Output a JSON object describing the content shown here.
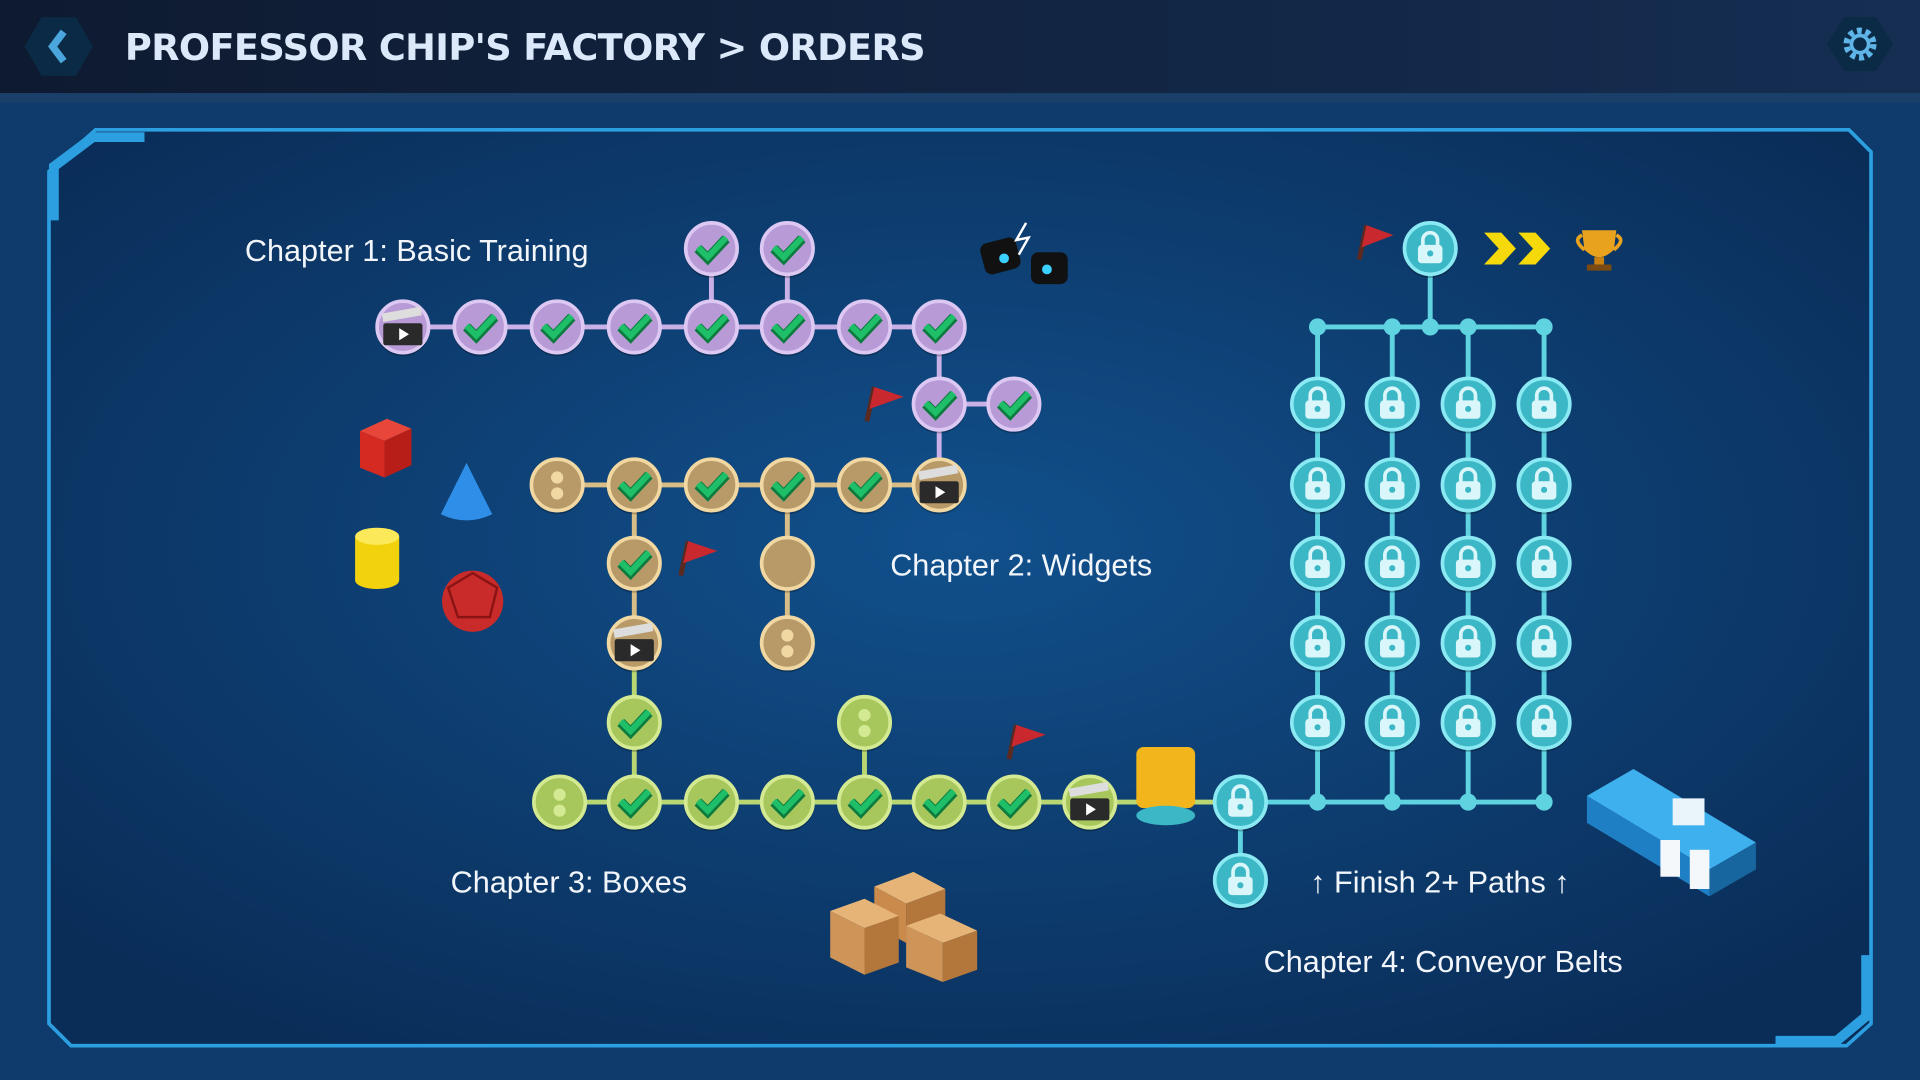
{
  "header": {
    "title": "PROFESSOR CHIP'S FACTORY > ORDERS",
    "back_icon": "chevron-left-icon",
    "settings_icon": "gear-icon"
  },
  "colors": {
    "background": "#0d3a6a",
    "frame": "#2a9fe0",
    "header_bg": "#10213d",
    "check": "#1fbf6a"
  },
  "chapters": [
    {
      "label": "Chapter 1: Basic Training",
      "fill": "#b79ad6",
      "ring": "#dcc8f2",
      "line": "#c9b0e6",
      "nodes": [
        "video",
        "done",
        "done",
        "done",
        "done",
        "done",
        "done",
        "done",
        "done",
        "done",
        "done",
        "done"
      ]
    },
    {
      "label": "Chapter 2: Widgets",
      "fill": "#b89a68",
      "ring": "#f1d8a2",
      "line": "#d9bd86",
      "nodes": [
        "start",
        "done",
        "done",
        "done",
        "done",
        "video",
        "done",
        "empty",
        "start",
        "video"
      ]
    },
    {
      "label": "Chapter 3: Boxes",
      "fill": "#a7c65c",
      "ring": "#d3ea92",
      "line": "#b8d672",
      "nodes": [
        "done",
        "start",
        "done",
        "done",
        "done",
        "done",
        "done",
        "done",
        "start",
        "video",
        "package"
      ]
    },
    {
      "label": "Chapter 4: Conveyor Belts",
      "fill": "#3cb7c6",
      "ring": "#8ae9f2",
      "line": "#5fd3e0",
      "nodes": [
        "locked",
        "locked",
        "locked",
        "locked",
        "locked",
        "locked",
        "locked",
        "locked",
        "locked",
        "locked",
        "locked",
        "locked",
        "locked",
        "locked",
        "locked",
        "locked",
        "locked",
        "locked",
        "locked",
        "locked",
        "locked",
        "locked",
        "locked"
      ]
    }
  ],
  "finish_hint": "↑ Finish 2+ Paths ↑",
  "goal": {
    "icons": [
      "flag-icon",
      "lock-icon",
      "fast-forward-icon",
      "trophy-icon"
    ]
  }
}
